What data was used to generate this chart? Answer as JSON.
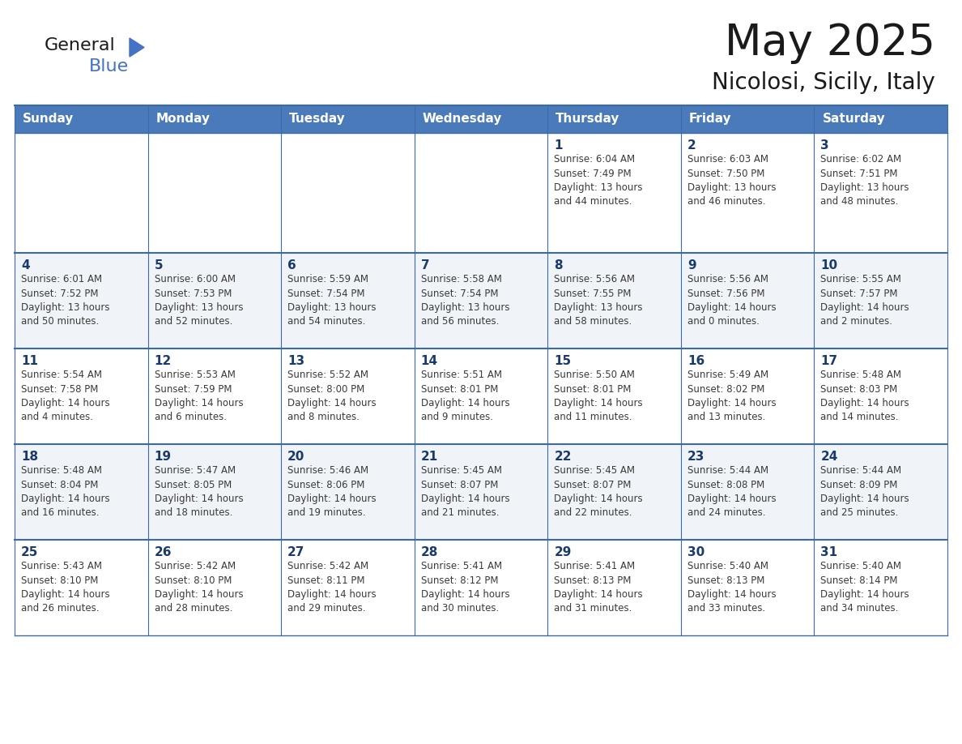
{
  "title": "May 2025",
  "subtitle": "Nicolosi, Sicily, Italy",
  "days_of_week": [
    "Sunday",
    "Monday",
    "Tuesday",
    "Wednesday",
    "Thursday",
    "Friday",
    "Saturday"
  ],
  "header_bg": "#4a7aba",
  "header_text": "#FFFFFF",
  "row_bg_odd": "#FFFFFF",
  "row_bg_even": "#f0f4f8",
  "day_number_color": "#1a3a6a",
  "cell_text_color": "#3a3a3a",
  "border_color": "#3a6aaa",
  "title_color": "#1a1a1a",
  "subtitle_color": "#1a1a1a",
  "calendar_data": [
    [
      {
        "day": 0,
        "info": ""
      },
      {
        "day": 0,
        "info": ""
      },
      {
        "day": 0,
        "info": ""
      },
      {
        "day": 0,
        "info": ""
      },
      {
        "day": 1,
        "info": "Sunrise: 6:04 AM\nSunset: 7:49 PM\nDaylight: 13 hours\nand 44 minutes."
      },
      {
        "day": 2,
        "info": "Sunrise: 6:03 AM\nSunset: 7:50 PM\nDaylight: 13 hours\nand 46 minutes."
      },
      {
        "day": 3,
        "info": "Sunrise: 6:02 AM\nSunset: 7:51 PM\nDaylight: 13 hours\nand 48 minutes."
      }
    ],
    [
      {
        "day": 4,
        "info": "Sunrise: 6:01 AM\nSunset: 7:52 PM\nDaylight: 13 hours\nand 50 minutes."
      },
      {
        "day": 5,
        "info": "Sunrise: 6:00 AM\nSunset: 7:53 PM\nDaylight: 13 hours\nand 52 minutes."
      },
      {
        "day": 6,
        "info": "Sunrise: 5:59 AM\nSunset: 7:54 PM\nDaylight: 13 hours\nand 54 minutes."
      },
      {
        "day": 7,
        "info": "Sunrise: 5:58 AM\nSunset: 7:54 PM\nDaylight: 13 hours\nand 56 minutes."
      },
      {
        "day": 8,
        "info": "Sunrise: 5:56 AM\nSunset: 7:55 PM\nDaylight: 13 hours\nand 58 minutes."
      },
      {
        "day": 9,
        "info": "Sunrise: 5:56 AM\nSunset: 7:56 PM\nDaylight: 14 hours\nand 0 minutes."
      },
      {
        "day": 10,
        "info": "Sunrise: 5:55 AM\nSunset: 7:57 PM\nDaylight: 14 hours\nand 2 minutes."
      }
    ],
    [
      {
        "day": 11,
        "info": "Sunrise: 5:54 AM\nSunset: 7:58 PM\nDaylight: 14 hours\nand 4 minutes."
      },
      {
        "day": 12,
        "info": "Sunrise: 5:53 AM\nSunset: 7:59 PM\nDaylight: 14 hours\nand 6 minutes."
      },
      {
        "day": 13,
        "info": "Sunrise: 5:52 AM\nSunset: 8:00 PM\nDaylight: 14 hours\nand 8 minutes."
      },
      {
        "day": 14,
        "info": "Sunrise: 5:51 AM\nSunset: 8:01 PM\nDaylight: 14 hours\nand 9 minutes."
      },
      {
        "day": 15,
        "info": "Sunrise: 5:50 AM\nSunset: 8:01 PM\nDaylight: 14 hours\nand 11 minutes."
      },
      {
        "day": 16,
        "info": "Sunrise: 5:49 AM\nSunset: 8:02 PM\nDaylight: 14 hours\nand 13 minutes."
      },
      {
        "day": 17,
        "info": "Sunrise: 5:48 AM\nSunset: 8:03 PM\nDaylight: 14 hours\nand 14 minutes."
      }
    ],
    [
      {
        "day": 18,
        "info": "Sunrise: 5:48 AM\nSunset: 8:04 PM\nDaylight: 14 hours\nand 16 minutes."
      },
      {
        "day": 19,
        "info": "Sunrise: 5:47 AM\nSunset: 8:05 PM\nDaylight: 14 hours\nand 18 minutes."
      },
      {
        "day": 20,
        "info": "Sunrise: 5:46 AM\nSunset: 8:06 PM\nDaylight: 14 hours\nand 19 minutes."
      },
      {
        "day": 21,
        "info": "Sunrise: 5:45 AM\nSunset: 8:07 PM\nDaylight: 14 hours\nand 21 minutes."
      },
      {
        "day": 22,
        "info": "Sunrise: 5:45 AM\nSunset: 8:07 PM\nDaylight: 14 hours\nand 22 minutes."
      },
      {
        "day": 23,
        "info": "Sunrise: 5:44 AM\nSunset: 8:08 PM\nDaylight: 14 hours\nand 24 minutes."
      },
      {
        "day": 24,
        "info": "Sunrise: 5:44 AM\nSunset: 8:09 PM\nDaylight: 14 hours\nand 25 minutes."
      }
    ],
    [
      {
        "day": 25,
        "info": "Sunrise: 5:43 AM\nSunset: 8:10 PM\nDaylight: 14 hours\nand 26 minutes."
      },
      {
        "day": 26,
        "info": "Sunrise: 5:42 AM\nSunset: 8:10 PM\nDaylight: 14 hours\nand 28 minutes."
      },
      {
        "day": 27,
        "info": "Sunrise: 5:42 AM\nSunset: 8:11 PM\nDaylight: 14 hours\nand 29 minutes."
      },
      {
        "day": 28,
        "info": "Sunrise: 5:41 AM\nSunset: 8:12 PM\nDaylight: 14 hours\nand 30 minutes."
      },
      {
        "day": 29,
        "info": "Sunrise: 5:41 AM\nSunset: 8:13 PM\nDaylight: 14 hours\nand 31 minutes."
      },
      {
        "day": 30,
        "info": "Sunrise: 5:40 AM\nSunset: 8:13 PM\nDaylight: 14 hours\nand 33 minutes."
      },
      {
        "day": 31,
        "info": "Sunrise: 5:40 AM\nSunset: 8:14 PM\nDaylight: 14 hours\nand 34 minutes."
      }
    ]
  ]
}
